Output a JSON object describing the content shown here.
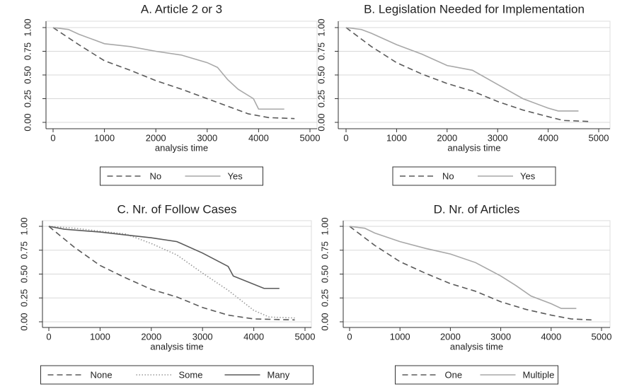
{
  "chart_data": [
    {
      "type": "line",
      "title": "A. Article 2 or 3",
      "xlabel": "analysis time",
      "xlim": [
        0,
        5000
      ],
      "xticks": [
        0,
        1000,
        2000,
        3000,
        4000,
        5000
      ],
      "ylim": [
        0,
        1
      ],
      "yticks": [
        {
          "value": 0,
          "label": "0.00"
        },
        {
          "value": 0.25,
          "label": "0.25"
        },
        {
          "value": 0.5,
          "label": "0.50"
        },
        {
          "value": 0.75,
          "label": "0.75"
        },
        {
          "value": 1,
          "label": "1.00"
        }
      ],
      "grid": true,
      "series": [
        {
          "name": "No",
          "color": "#5a5a5a",
          "dash": "dashed",
          "x": [
            0,
            500,
            1000,
            1500,
            2000,
            2500,
            3000,
            3500,
            3800,
            4200,
            4700
          ],
          "values": [
            1,
            0.82,
            0.65,
            0.55,
            0.44,
            0.35,
            0.25,
            0.15,
            0.09,
            0.05,
            0.04
          ]
        },
        {
          "name": "Yes",
          "color": "#a8a8a8",
          "dash": "solid",
          "x": [
            0,
            300,
            500,
            800,
            1000,
            1500,
            2000,
            2500,
            3000,
            3200,
            3400,
            3600,
            3900,
            4000,
            4500
          ],
          "values": [
            1,
            0.98,
            0.93,
            0.87,
            0.83,
            0.8,
            0.75,
            0.71,
            0.63,
            0.58,
            0.45,
            0.35,
            0.25,
            0.14,
            0.14
          ]
        }
      ]
    },
    {
      "type": "line",
      "title": "B. Legislation Needed for Implementation",
      "xlabel": "analysis time",
      "xlim": [
        0,
        5000
      ],
      "xticks": [
        0,
        1000,
        2000,
        3000,
        4000,
        5000
      ],
      "ylim": [
        0,
        1
      ],
      "yticks": [
        {
          "value": 0,
          "label": "0.00"
        },
        {
          "value": 0.25,
          "label": "0.25"
        },
        {
          "value": 0.5,
          "label": "0.50"
        },
        {
          "value": 0.75,
          "label": "0.75"
        },
        {
          "value": 1,
          "label": "1.00"
        }
      ],
      "grid": true,
      "series": [
        {
          "name": "No",
          "color": "#5a5a5a",
          "dash": "dashed",
          "x": [
            0,
            500,
            1000,
            1500,
            2000,
            2500,
            3000,
            3500,
            4000,
            4300,
            4800
          ],
          "values": [
            1,
            0.8,
            0.63,
            0.51,
            0.41,
            0.33,
            0.22,
            0.13,
            0.06,
            0.02,
            0.01
          ]
        },
        {
          "name": "Yes",
          "color": "#a8a8a8",
          "dash": "solid",
          "x": [
            0,
            300,
            500,
            1000,
            1500,
            2000,
            2500,
            3000,
            3500,
            4000,
            4200,
            4600
          ],
          "values": [
            1,
            0.98,
            0.94,
            0.82,
            0.72,
            0.6,
            0.55,
            0.4,
            0.25,
            0.15,
            0.12,
            0.12
          ]
        }
      ]
    },
    {
      "type": "line",
      "title": "C. Nr. of Follow Cases",
      "xlabel": "analysis time",
      "xlim": [
        0,
        5000
      ],
      "xticks": [
        0,
        1000,
        2000,
        3000,
        4000,
        5000
      ],
      "ylim": [
        0,
        1
      ],
      "yticks": [
        {
          "value": 0,
          "label": "0.00"
        },
        {
          "value": 0.25,
          "label": "0.25"
        },
        {
          "value": 0.5,
          "label": "0.50"
        },
        {
          "value": 0.75,
          "label": "0.75"
        },
        {
          "value": 1,
          "label": "1.00"
        }
      ],
      "grid": true,
      "series": [
        {
          "name": "None",
          "color": "#5a5a5a",
          "dash": "dashed",
          "x": [
            0,
            500,
            1000,
            1500,
            2000,
            2500,
            3000,
            3500,
            4000,
            4800
          ],
          "values": [
            1,
            0.78,
            0.59,
            0.46,
            0.34,
            0.26,
            0.15,
            0.07,
            0.03,
            0.02
          ]
        },
        {
          "name": "Some",
          "color": "#9a9a9a",
          "dash": "dotted",
          "x": [
            0,
            500,
            1000,
            1500,
            2000,
            2500,
            3000,
            3500,
            4000,
            4300,
            4800
          ],
          "values": [
            1,
            0.98,
            0.95,
            0.92,
            0.82,
            0.7,
            0.51,
            0.33,
            0.12,
            0.05,
            0.04
          ]
        },
        {
          "name": "Many",
          "color": "#5a5a5a",
          "dash": "solid",
          "x": [
            0,
            300,
            1000,
            1500,
            2000,
            2500,
            3000,
            3500,
            3600,
            4200,
            4500
          ],
          "values": [
            1,
            0.97,
            0.94,
            0.91,
            0.88,
            0.84,
            0.72,
            0.58,
            0.48,
            0.35,
            0.35
          ]
        }
      ]
    },
    {
      "type": "line",
      "title": "D. Nr. of Articles",
      "xlabel": "analysis time",
      "xlim": [
        0,
        5000
      ],
      "xticks": [
        0,
        1000,
        2000,
        3000,
        4000,
        5000
      ],
      "ylim": [
        0,
        1
      ],
      "yticks": [
        {
          "value": 0,
          "label": "0.00"
        },
        {
          "value": 0.25,
          "label": "0.25"
        },
        {
          "value": 0.5,
          "label": "0.50"
        },
        {
          "value": 0.75,
          "label": "0.75"
        },
        {
          "value": 1,
          "label": "1.00"
        }
      ],
      "grid": true,
      "series": [
        {
          "name": "One",
          "color": "#5a5a5a",
          "dash": "dashed",
          "x": [
            0,
            500,
            1000,
            1500,
            2000,
            2500,
            3000,
            3500,
            4000,
            4400,
            4800
          ],
          "values": [
            1,
            0.8,
            0.63,
            0.51,
            0.4,
            0.32,
            0.21,
            0.13,
            0.07,
            0.03,
            0.02
          ]
        },
        {
          "name": "Multiple",
          "color": "#a8a8a8",
          "dash": "solid",
          "x": [
            0,
            300,
            500,
            1000,
            1500,
            2000,
            2500,
            3000,
            3300,
            3600,
            4000,
            4200,
            4500
          ],
          "values": [
            1,
            0.98,
            0.93,
            0.84,
            0.77,
            0.71,
            0.62,
            0.48,
            0.38,
            0.27,
            0.19,
            0.14,
            0.14
          ]
        }
      ]
    }
  ]
}
